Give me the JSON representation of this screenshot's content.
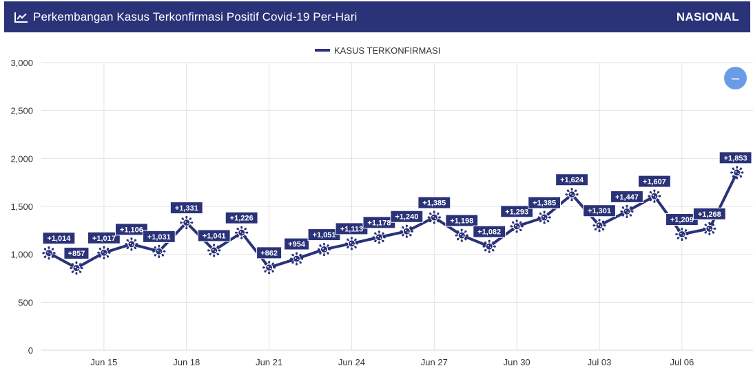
{
  "header": {
    "title": "Perkembangan Kasus Terkonfirmasi Positif Covid-19 Per-Hari",
    "region_label": "NASIONAL",
    "icon": "trend-line-icon"
  },
  "zoom_button": {
    "icon": "minus-icon",
    "symbol": "–"
  },
  "colors": {
    "header_bg": "#2a3278",
    "series": "#2a3278",
    "grid": "#e2e2e2",
    "zoom_button": "#6a9be6"
  },
  "chart_data": {
    "type": "line",
    "title": "",
    "xlabel": "",
    "ylabel": "",
    "ylim": [
      0,
      3000
    ],
    "yticks": [
      0,
      500,
      1000,
      1500,
      2000,
      2500,
      3000
    ],
    "ytick_labels": [
      "0",
      "500",
      "1,000",
      "1,500",
      "2,000",
      "2,500",
      "3,000"
    ],
    "x": [
      "Jun 13",
      "Jun 14",
      "Jun 15",
      "Jun 16",
      "Jun 17",
      "Jun 18",
      "Jun 19",
      "Jun 20",
      "Jun 21",
      "Jun 22",
      "Jun 23",
      "Jun 24",
      "Jun 25",
      "Jun 26",
      "Jun 27",
      "Jun 28",
      "Jun 29",
      "Jun 30",
      "Jul 01",
      "Jul 02",
      "Jul 03",
      "Jul 04",
      "Jul 05",
      "Jul 06",
      "Jul 07",
      "Jul 08"
    ],
    "xticks": [
      "Jun 15",
      "Jun 18",
      "Jun 21",
      "Jun 24",
      "Jun 27",
      "Jun 30",
      "Jul 03",
      "Jul 06",
      "Jul"
    ],
    "legend_position": "top-center",
    "grid": true,
    "series": [
      {
        "name": "KASUS TERKONFIRMASI",
        "values": [
          1014,
          857,
          1017,
          1106,
          1031,
          1331,
          1041,
          1226,
          862,
          954,
          1051,
          1113,
          1178,
          1240,
          1385,
          1198,
          1082,
          1293,
          1385,
          1624,
          1301,
          1447,
          1607,
          1209,
          1268,
          1853
        ],
        "labels": [
          "+1,014",
          "+857",
          "+1,017",
          "+1,106",
          "+1,031",
          "+1,331",
          "+1,041",
          "+1,226",
          "+862",
          "+954",
          "+1,051",
          "+1,113",
          "+1,178",
          "+1,240",
          "+1,385",
          "+1,198",
          "+1,082",
          "+1,293",
          "+1,385",
          "+1,624",
          "+1,301",
          "+1,447",
          "+1,607",
          "+1,209",
          "+1,268",
          "+1,853"
        ]
      }
    ]
  }
}
